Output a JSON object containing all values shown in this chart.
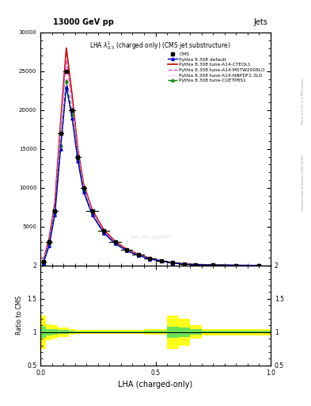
{
  "title_top": "13000 GeV pp",
  "title_right": "Jets",
  "plot_title": "LHA $\\lambda^{1}_{0.5}$ (charged only) (CMS jet substructure)",
  "xlabel": "LHA (charged-only)",
  "ylabel_ratio": "Ratio to CMS",
  "watermark": "mcplots.cern.ch [arXiv:1306.3436]",
  "rivet_version": "Rivet 3.1.10, ≥ 2.9M events",
  "cms_id": "CMS_2021_I1920187",
  "x_bins": [
    0.0,
    0.025,
    0.05,
    0.075,
    0.1,
    0.125,
    0.15,
    0.175,
    0.2,
    0.25,
    0.3,
    0.35,
    0.4,
    0.45,
    0.5,
    0.55,
    0.6,
    0.65,
    0.7,
    0.8,
    0.9,
    1.0
  ],
  "cms_y": [
    500,
    3000,
    7000,
    17000,
    25000,
    20000,
    14000,
    10000,
    7000,
    4500,
    3000,
    2000,
    1400,
    900,
    600,
    350,
    200,
    120,
    80,
    30,
    10
  ],
  "pythia_default_y": [
    300,
    2500,
    6500,
    15000,
    23000,
    19000,
    13500,
    9500,
    6500,
    4200,
    2800,
    1900,
    1300,
    850,
    560,
    330,
    190,
    110,
    70,
    25,
    8
  ],
  "pythia_cteql1_y": [
    600,
    3500,
    8000,
    18500,
    28000,
    22000,
    15000,
    10500,
    7200,
    4600,
    3100,
    2100,
    1450,
    950,
    620,
    370,
    210,
    130,
    85,
    32,
    12
  ],
  "pythia_mstw_y": [
    500,
    3200,
    7500,
    17500,
    26500,
    21000,
    14500,
    10200,
    7000,
    4400,
    2950,
    2000,
    1380,
    900,
    590,
    350,
    200,
    120,
    78,
    30,
    10
  ],
  "pythia_nnpdf_y": [
    550,
    3300,
    7600,
    17800,
    26800,
    21200,
    14600,
    10300,
    7050,
    4450,
    2980,
    2020,
    1390,
    910,
    595,
    355,
    202,
    122,
    79,
    31,
    10
  ],
  "pythia_cuetp_y": [
    250,
    2800,
    6800,
    15500,
    23800,
    19500,
    13800,
    9700,
    6600,
    4250,
    2850,
    1950,
    1330,
    870,
    570,
    335,
    195,
    115,
    72,
    27,
    9
  ],
  "ratio_yellow_lo": [
    0.75,
    0.88,
    0.9,
    0.93,
    0.93,
    0.96,
    0.97,
    0.97,
    0.97,
    0.97,
    0.97,
    0.97,
    0.97,
    0.96,
    0.96,
    0.75,
    0.8,
    0.9,
    0.95,
    0.95,
    0.95
  ],
  "ratio_yellow_hi": [
    1.25,
    1.12,
    1.1,
    1.07,
    1.07,
    1.04,
    1.03,
    1.03,
    1.03,
    1.03,
    1.03,
    1.03,
    1.03,
    1.04,
    1.04,
    1.25,
    1.2,
    1.1,
    1.05,
    1.05,
    1.05
  ],
  "ratio_green_lo": [
    0.92,
    0.95,
    0.96,
    0.97,
    0.97,
    0.98,
    0.99,
    0.99,
    0.99,
    0.99,
    0.99,
    0.99,
    0.99,
    0.98,
    0.98,
    0.92,
    0.93,
    0.96,
    0.98,
    0.98,
    0.98
  ],
  "ratio_green_hi": [
    1.08,
    1.05,
    1.04,
    1.03,
    1.03,
    1.02,
    1.01,
    1.01,
    1.01,
    1.01,
    1.01,
    1.01,
    1.01,
    1.02,
    1.02,
    1.08,
    1.07,
    1.04,
    1.02,
    1.02,
    1.02
  ],
  "colors": {
    "cms": "#000000",
    "pythia_default": "#0000cc",
    "pythia_cteql1": "#cc0000",
    "pythia_mstw": "#dd44dd",
    "pythia_nnpdf": "#ffaacc",
    "pythia_cuetp": "#008800"
  },
  "ylim_main": [
    0,
    30000
  ],
  "ylim_ratio": [
    0.5,
    2.0
  ],
  "xlim": [
    0.0,
    1.0
  ]
}
